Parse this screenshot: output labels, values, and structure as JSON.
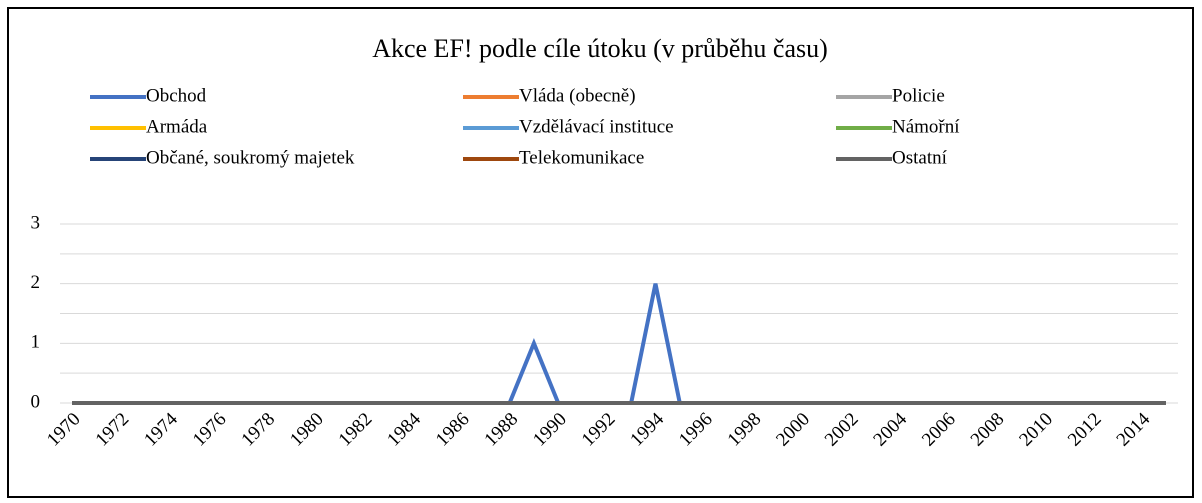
{
  "chart_data": {
    "type": "line",
    "title": "Akce EF! podle cíle útoku (v průběhu času)",
    "categories": [
      "1970",
      null,
      "1972",
      null,
      "1974",
      null,
      "1976",
      null,
      "1978",
      null,
      "1980",
      null,
      "1982",
      null,
      "1984",
      null,
      "1986",
      null,
      "1988",
      null,
      "1990",
      null,
      "1992",
      null,
      "1994",
      null,
      "1996",
      null,
      "1998",
      null,
      "2000",
      null,
      "2002",
      null,
      "2004",
      null,
      "2006",
      null,
      "2008",
      null,
      "2010",
      null,
      "2012",
      null,
      "2014",
      null
    ],
    "series": [
      {
        "name": "Obchod",
        "color": "#4472c4",
        "values": [
          0,
          0,
          0,
          0,
          0,
          0,
          0,
          0,
          0,
          0,
          0,
          0,
          0,
          0,
          0,
          0,
          0,
          0,
          0,
          1,
          0,
          0,
          0,
          0,
          2,
          0,
          0,
          0,
          0,
          0,
          0,
          0,
          0,
          0,
          0,
          0,
          0,
          0,
          0,
          0,
          0,
          0,
          0,
          0,
          0,
          0
        ]
      },
      {
        "name": "Vláda (obecně)",
        "color": "#ed7d31",
        "values": [
          0,
          0,
          0,
          0,
          0,
          0,
          0,
          0,
          0,
          0,
          0,
          0,
          0,
          0,
          0,
          0,
          0,
          0,
          0,
          0,
          0,
          0,
          0,
          0,
          0,
          0,
          0,
          0,
          0,
          0,
          0,
          0,
          0,
          0,
          0,
          0,
          0,
          0,
          0,
          0,
          0,
          0,
          0,
          0,
          0,
          0
        ]
      },
      {
        "name": "Policie",
        "color": "#a5a5a5",
        "values": [
          0,
          0,
          0,
          0,
          0,
          0,
          0,
          0,
          0,
          0,
          0,
          0,
          0,
          0,
          0,
          0,
          0,
          0,
          0,
          0,
          0,
          0,
          0,
          0,
          0,
          0,
          0,
          0,
          0,
          0,
          0,
          0,
          0,
          0,
          0,
          0,
          0,
          0,
          0,
          0,
          0,
          0,
          0,
          0,
          0,
          0
        ]
      },
      {
        "name": "Armáda",
        "color": "#ffc000",
        "values": [
          0,
          0,
          0,
          0,
          0,
          0,
          0,
          0,
          0,
          0,
          0,
          0,
          0,
          0,
          0,
          0,
          0,
          0,
          0,
          0,
          0,
          0,
          0,
          0,
          0,
          0,
          0,
          0,
          0,
          0,
          0,
          0,
          0,
          0,
          0,
          0,
          0,
          0,
          0,
          0,
          0,
          0,
          0,
          0,
          0,
          0
        ]
      },
      {
        "name": "Vzdělávací instituce",
        "color": "#5b9bd5",
        "values": [
          0,
          0,
          0,
          0,
          0,
          0,
          0,
          0,
          0,
          0,
          0,
          0,
          0,
          0,
          0,
          0,
          0,
          0,
          0,
          0,
          0,
          0,
          0,
          0,
          0,
          0,
          0,
          0,
          0,
          0,
          0,
          0,
          0,
          0,
          0,
          0,
          0,
          0,
          0,
          0,
          0,
          0,
          0,
          0,
          0,
          0
        ]
      },
      {
        "name": "Námořní",
        "color": "#70ad47",
        "values": [
          0,
          0,
          0,
          0,
          0,
          0,
          0,
          0,
          0,
          0,
          0,
          0,
          0,
          0,
          0,
          0,
          0,
          0,
          0,
          0,
          0,
          0,
          0,
          0,
          0,
          0,
          0,
          0,
          0,
          0,
          0,
          0,
          0,
          0,
          0,
          0,
          0,
          0,
          0,
          0,
          0,
          0,
          0,
          0,
          0,
          0
        ]
      },
      {
        "name": "Občané, soukromý majetek",
        "color": "#264478",
        "values": [
          0,
          0,
          0,
          0,
          0,
          0,
          0,
          0,
          0,
          0,
          0,
          0,
          0,
          0,
          0,
          0,
          0,
          0,
          0,
          0,
          0,
          0,
          0,
          0,
          0,
          0,
          0,
          0,
          0,
          0,
          0,
          0,
          0,
          0,
          0,
          0,
          0,
          0,
          0,
          0,
          0,
          0,
          0,
          0,
          0,
          0
        ]
      },
      {
        "name": "Telekomunikace",
        "color": "#9e480e",
        "values": [
          0,
          0,
          0,
          0,
          0,
          0,
          0,
          0,
          0,
          0,
          0,
          0,
          0,
          0,
          0,
          0,
          0,
          0,
          0,
          0,
          0,
          0,
          0,
          0,
          0,
          0,
          0,
          0,
          0,
          0,
          0,
          0,
          0,
          0,
          0,
          0,
          0,
          0,
          0,
          0,
          0,
          0,
          0,
          0,
          0,
          0
        ]
      },
      {
        "name": "Ostatní",
        "color": "#636363",
        "values": [
          0,
          0,
          0,
          0,
          0,
          0,
          0,
          0,
          0,
          0,
          0,
          0,
          0,
          0,
          0,
          0,
          0,
          0,
          0,
          0,
          0,
          0,
          0,
          0,
          0,
          0,
          0,
          0,
          0,
          0,
          0,
          0,
          0,
          0,
          0,
          0,
          0,
          0,
          0,
          0,
          0,
          0,
          0,
          0,
          0,
          0
        ]
      }
    ],
    "ylim": [
      0,
      3
    ],
    "yticks": [
      0,
      1,
      2,
      3
    ],
    "grid": true
  }
}
